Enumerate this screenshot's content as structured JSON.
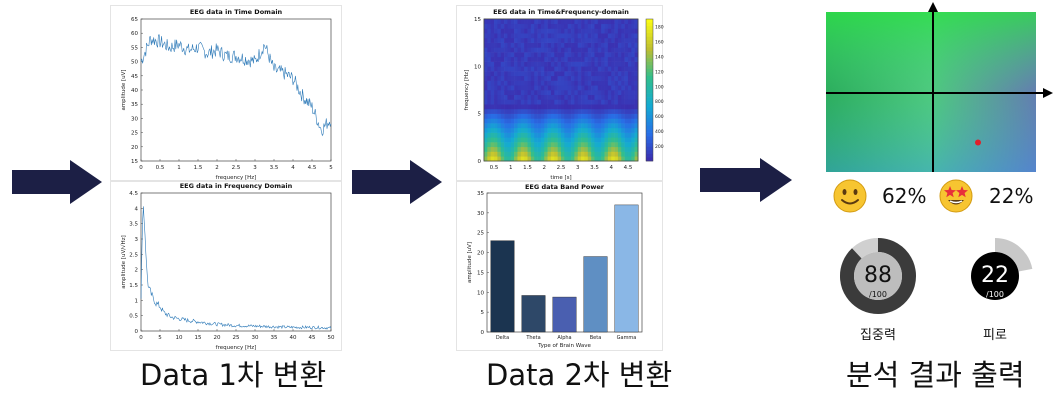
{
  "flow": {
    "step1_caption": "Data 1차 변환",
    "step2_caption": "Data 2차 변환",
    "step3_caption": "분석 결과 출력"
  },
  "colors": {
    "arrow": "#1c1f45",
    "line": "#2e7ab8",
    "bars": [
      "#1b3450",
      "#2e4868",
      "#4a5fb0",
      "#5f8fc3",
      "#8ab7e6"
    ]
  },
  "chart_data": [
    {
      "type": "line",
      "title": "EEG data in Time Domain",
      "xlabel": "frequency [Hz]",
      "ylabel": "amplitude [uV]",
      "xlim": [
        0,
        5
      ],
      "ylim": [
        15,
        65
      ],
      "xticks": [
        "0",
        "0.5",
        "1",
        "1.5",
        "2",
        "2.5",
        "3",
        "3.5",
        "4",
        "4.5",
        "5"
      ],
      "yticks": [
        "15",
        "20",
        "25",
        "30",
        "35",
        "40",
        "45",
        "50",
        "55",
        "60",
        "65"
      ],
      "x": [
        0,
        0.25,
        0.5,
        0.75,
        1.0,
        1.25,
        1.5,
        1.75,
        2.0,
        2.25,
        2.5,
        2.75,
        3.0,
        3.25,
        3.5,
        3.75,
        4.0,
        4.25,
        4.5,
        4.75,
        5.0
      ],
      "y": [
        50,
        58,
        57,
        55,
        56,
        54,
        55,
        53,
        54,
        52,
        52,
        51,
        50,
        56,
        47,
        46,
        44,
        38,
        34,
        26,
        30
      ]
    },
    {
      "type": "line",
      "title": "EEG data in Frequency Domain",
      "xlabel": "frequency [Hz]",
      "ylabel": "amplitude [uV/√Hz]",
      "xlim": [
        0,
        50
      ],
      "ylim": [
        0,
        4.5
      ],
      "xticks": [
        "0",
        "5",
        "10",
        "15",
        "20",
        "25",
        "30",
        "35",
        "40",
        "45",
        "50"
      ],
      "yticks": [
        "0",
        "0.5",
        "1",
        "1.5",
        "2",
        "2.5",
        "3",
        "3.5",
        "4",
        "4.5"
      ],
      "x": [
        0,
        0.5,
        1,
        1.5,
        2,
        3,
        4,
        5,
        6,
        8,
        10,
        12,
        15,
        20,
        25,
        30,
        35,
        40,
        45,
        50
      ],
      "y": [
        1.0,
        4.3,
        3.3,
        2.0,
        1.4,
        1.1,
        0.9,
        0.8,
        0.6,
        0.45,
        0.4,
        0.35,
        0.3,
        0.22,
        0.18,
        0.16,
        0.14,
        0.12,
        0.12,
        0.1
      ]
    },
    {
      "type": "heatmap",
      "title": "EEG data in Time&Frequency-domain",
      "xlabel": "time [s]",
      "ylabel": "frequency [Hz]",
      "xlim": [
        0.2,
        4.8
      ],
      "ylim": [
        0,
        15
      ],
      "xticks": [
        "0.5",
        "1",
        "1.5",
        "2",
        "2.5",
        "3",
        "3.5",
        "4",
        "4.5"
      ],
      "yticks": [
        "0",
        "5",
        "10",
        "15"
      ],
      "colorbar_ticks": [
        "200",
        "400",
        "600",
        "800",
        "1000",
        "1200",
        "1400",
        "1600",
        "1800"
      ],
      "clim": [
        0,
        1900
      ]
    },
    {
      "type": "bar",
      "title": "EEG data Band Power",
      "xlabel": "Type of Brain Wave",
      "ylabel": "amplitude [uV]",
      "categories": [
        "Delta",
        "Theta",
        "Alpha",
        "Beta",
        "Gamma"
      ],
      "values": [
        23,
        9.2,
        8.8,
        19,
        32
      ],
      "ylim": [
        0,
        35
      ],
      "yticks": [
        "0",
        "5",
        "10",
        "15",
        "20",
        "25",
        "30",
        "35"
      ]
    }
  ],
  "results": {
    "emotion_point": {
      "x": 0.45,
      "y": -0.55
    },
    "emotions": [
      {
        "icon": "smiling-face-icon",
        "glyph": "🙂",
        "value": "62%"
      },
      {
        "icon": "star-struck-face-icon",
        "glyph": "🤩",
        "value": "22%"
      }
    ],
    "gauges": [
      {
        "name": "concentration",
        "value": "88",
        "max": "/100",
        "label": "집중력",
        "fraction": 0.88
      },
      {
        "name": "fatigue",
        "value": "22",
        "max": "/100",
        "label": "피로",
        "fraction": 0.22
      }
    ]
  }
}
